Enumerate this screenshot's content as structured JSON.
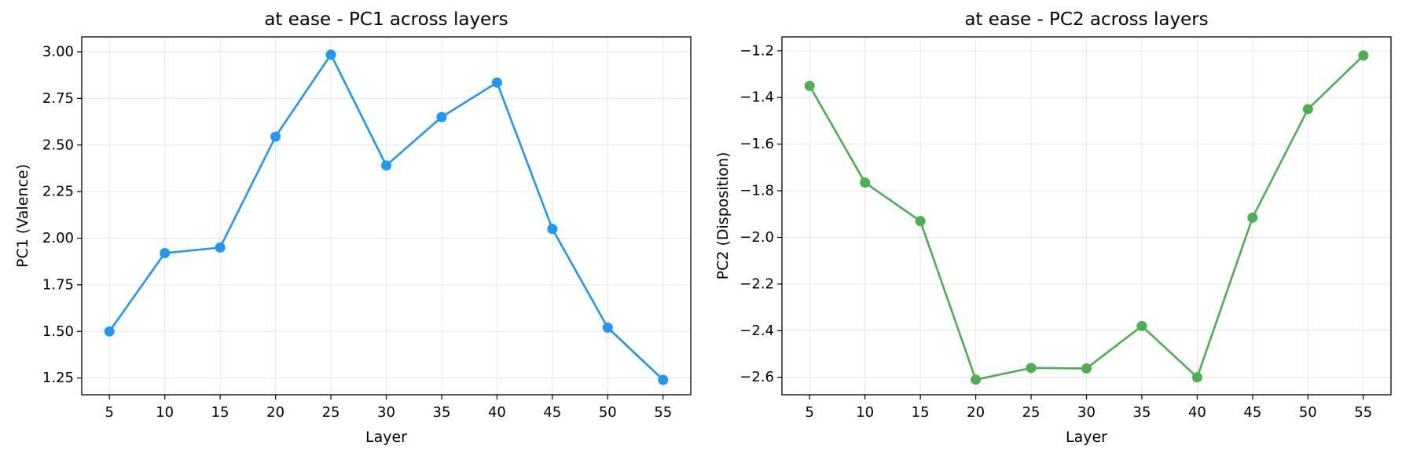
{
  "chart_data": [
    {
      "type": "line",
      "title": "at ease - PC1 across layers",
      "xlabel": "Layer",
      "ylabel": "PC1 (Valence)",
      "x": [
        5,
        10,
        15,
        20,
        25,
        30,
        35,
        40,
        45,
        50,
        55
      ],
      "xticks": [
        "5",
        "10",
        "15",
        "20",
        "25",
        "30",
        "35",
        "40",
        "45",
        "50",
        "55"
      ],
      "yticks": [
        "1.25",
        "1.50",
        "1.75",
        "2.00",
        "2.25",
        "2.50",
        "2.75",
        "3.00"
      ],
      "ytick_values": [
        1.25,
        1.5,
        1.75,
        2.0,
        2.25,
        2.5,
        2.75,
        3.0
      ],
      "xlim": [
        2.5,
        57.5
      ],
      "ylim": [
        1.16,
        3.08
      ],
      "grid": true,
      "color": "#2196F3",
      "series": [
        {
          "values": [
            1.5,
            1.92,
            1.95,
            2.545,
            2.985,
            2.39,
            2.65,
            2.835,
            2.05,
            1.52,
            1.24
          ]
        }
      ]
    },
    {
      "type": "line",
      "title": "at ease - PC2 across layers",
      "xlabel": "Layer",
      "ylabel": "PC2 (Disposition)",
      "x": [
        5,
        10,
        15,
        20,
        25,
        30,
        35,
        40,
        45,
        50,
        55
      ],
      "xticks": [
        "5",
        "10",
        "15",
        "20",
        "25",
        "30",
        "35",
        "40",
        "45",
        "50",
        "55"
      ],
      "yticks": [
        "−2.6",
        "−2.4",
        "−2.2",
        "−2.0",
        "−1.8",
        "−1.6",
        "−1.4",
        "−1.2"
      ],
      "ytick_values": [
        -2.6,
        -2.4,
        -2.2,
        -2.0,
        -1.8,
        -1.6,
        -1.4,
        -1.2
      ],
      "xlim": [
        2.5,
        57.5
      ],
      "ylim": [
        -2.675,
        -1.14
      ],
      "grid": true,
      "color": "#4CAF50",
      "series": [
        {
          "values": [
            -1.35,
            -1.765,
            -1.93,
            -2.61,
            -2.56,
            -2.562,
            -2.38,
            -2.6,
            -1.915,
            -1.45,
            -1.22
          ]
        }
      ]
    }
  ]
}
